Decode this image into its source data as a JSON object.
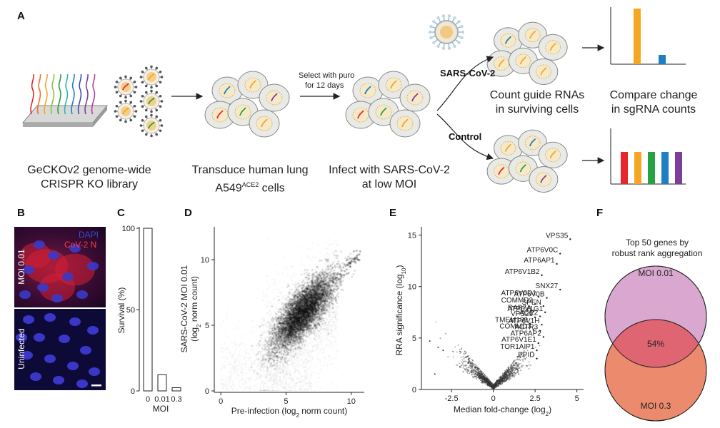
{
  "panels": {
    "a": "A",
    "b": "B",
    "c": "C",
    "d": "D",
    "e": "E",
    "f": "F"
  },
  "workflow": {
    "step1_line1": "GeCKOv2 genome-wide",
    "step1_line2": "CRISPR KO library",
    "step2_line1": "Transduce human lung",
    "step2_line2_pre": "A549",
    "step2_line2_sup": "ACE2",
    "step2_line2_post": " cells",
    "select_line1": "Select with puro",
    "select_line2": "for 12 days",
    "step3_line1": "Infect with SARS-CoV-2",
    "step3_line2": "at low MOI",
    "branch_top": "SARS-CoV-2",
    "branch_bottom": "Control",
    "count_line1": "Count guide RNAs",
    "count_line2": "in surviving cells",
    "compare_line1": "Compare change",
    "compare_line2": "in sgRNA counts",
    "colors": {
      "red": "#e8262b",
      "orange": "#f5a623",
      "green": "#27a243",
      "blue": "#1f7fc4",
      "purple": "#7a3f98"
    }
  },
  "micro": {
    "moi_label": "MOI 0.01",
    "uninfected_label": "Uninfected",
    "dapi_label": "DAPI",
    "cov_label": "CoV-2 N"
  },
  "chart_data": [
    {
      "type": "bar",
      "panel": "C",
      "categories": [
        "0",
        "0.01",
        "0.3"
      ],
      "values": [
        100,
        10,
        2
      ],
      "xlabel": "MOI",
      "ylabel": "Survival (%)",
      "yticks": [
        0,
        50,
        100
      ],
      "ylim": [
        0,
        100
      ]
    },
    {
      "type": "scatter",
      "panel": "D",
      "xlabel_pre": "Pre-infection (log",
      "xlabel_sub": "2",
      "xlabel_post": " norm count)",
      "ylabel_line1": "SARS-CoV-2 MOI 0.01",
      "ylabel_line2_pre": "(log",
      "ylabel_line2_sub": "2",
      "ylabel_line2_post": " norm count)",
      "xticks": [
        0,
        5,
        10
      ],
      "yticks": [
        0,
        5,
        10
      ],
      "xlim": [
        -0.5,
        11
      ],
      "ylim": [
        0,
        12.5
      ]
    },
    {
      "type": "scatter",
      "panel": "E",
      "xlabel_pre": "Median fold-change (log",
      "xlabel_sub": "2",
      "xlabel_post": ")",
      "ylabel_pre": "RRA significance (log",
      "ylabel_sub": "10",
      "ylabel_post": ")",
      "xticks": [
        -2.5,
        0,
        2.5,
        5
      ],
      "yticks": [
        0,
        5,
        10,
        15
      ],
      "xlim": [
        -4.3,
        5.4
      ],
      "ylim": [
        0,
        15.8
      ],
      "genes": [
        {
          "name": "VPS35",
          "x": 4.6,
          "y": 14.6
        },
        {
          "name": "ATP6V0C",
          "x": 4.0,
          "y": 13.2
        },
        {
          "name": "ATP6AP1",
          "x": 3.8,
          "y": 12.2
        },
        {
          "name": "ATP6V1B2",
          "x": 2.9,
          "y": 11.1
        },
        {
          "name": "SNX27",
          "x": 4.0,
          "y": 9.7
        },
        {
          "name": "ATP6V0D1",
          "x": 2.7,
          "y": 9.0
        },
        {
          "name": "ATP6V0B",
          "x": 3.2,
          "y": 8.9
        },
        {
          "name": "COMMD2",
          "x": 2.5,
          "y": 8.3
        },
        {
          "name": "SPEN",
          "x": 3.0,
          "y": 8.1
        },
        {
          "name": "RAB7A",
          "x": 2.4,
          "y": 7.6
        },
        {
          "name": "ATP6V1G1",
          "x": 3.1,
          "y": 7.5
        },
        {
          "name": "ACE2",
          "x": 2.8,
          "y": 7.1
        },
        {
          "name": "VPS29",
          "x": 2.5,
          "y": 7.0
        },
        {
          "name": "TMEM199",
          "x": 2.2,
          "y": 6.4
        },
        {
          "name": "ATP6V1H",
          "x": 2.9,
          "y": 6.3
        },
        {
          "name": "COMMD3",
          "x": 2.4,
          "y": 5.8
        },
        {
          "name": "ACTR3",
          "x": 2.8,
          "y": 5.7
        },
        {
          "name": "ATP6AP2",
          "x": 3.0,
          "y": 5.1
        },
        {
          "name": "ATP6V1E1",
          "x": 2.7,
          "y": 4.5
        },
        {
          "name": "TOR1AIP1",
          "x": 2.6,
          "y": 3.8
        },
        {
          "name": "PPID",
          "x": 2.6,
          "y": 3.0
        }
      ]
    }
  ],
  "venn": {
    "title_line1": "Top 50 genes by",
    "title_line2": "robust rank aggregation",
    "top_label": "MOI 0.01",
    "bottom_label": "MOI 0.3",
    "overlap_label": "54%",
    "top_color": "#d9a7cf",
    "bottom_color": "#ec8a6e",
    "overlap_color": "#e06573"
  }
}
